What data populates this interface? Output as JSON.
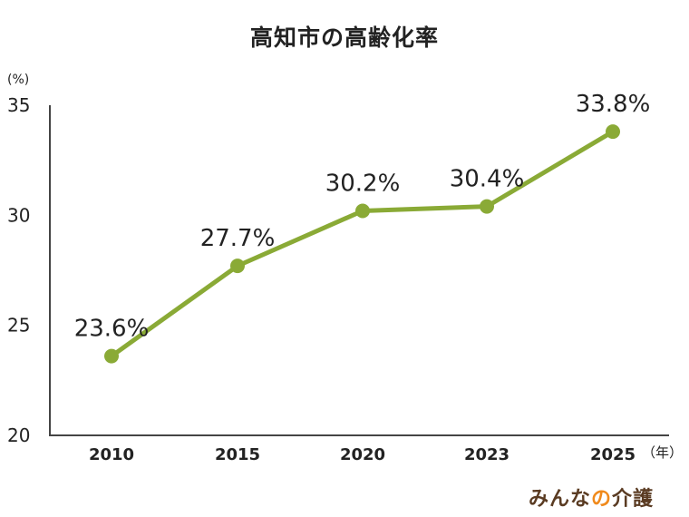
{
  "chart_data": {
    "type": "line",
    "title": "高知市の高齢化率",
    "y_unit": "(%)",
    "x_unit": "（年）",
    "categories": [
      "2010",
      "2015",
      "2020",
      "2023",
      "2025"
    ],
    "series": [
      {
        "values": [
          23.6,
          27.7,
          30.2,
          30.4,
          33.8
        ],
        "data_labels": [
          "23.6%",
          "27.7%",
          "30.2%",
          "30.4%",
          "33.8%"
        ],
        "color": "#8aaa36"
      }
    ],
    "ylim": [
      20,
      35
    ],
    "yticks": [
      "20",
      "25",
      "30",
      "35"
    ],
    "grid": false,
    "legend": "none"
  },
  "brand": {
    "part1": "みんな",
    "part2": "の",
    "part3": "介護",
    "color": "#5a3b22",
    "accent_color": "#f08a1c"
  }
}
